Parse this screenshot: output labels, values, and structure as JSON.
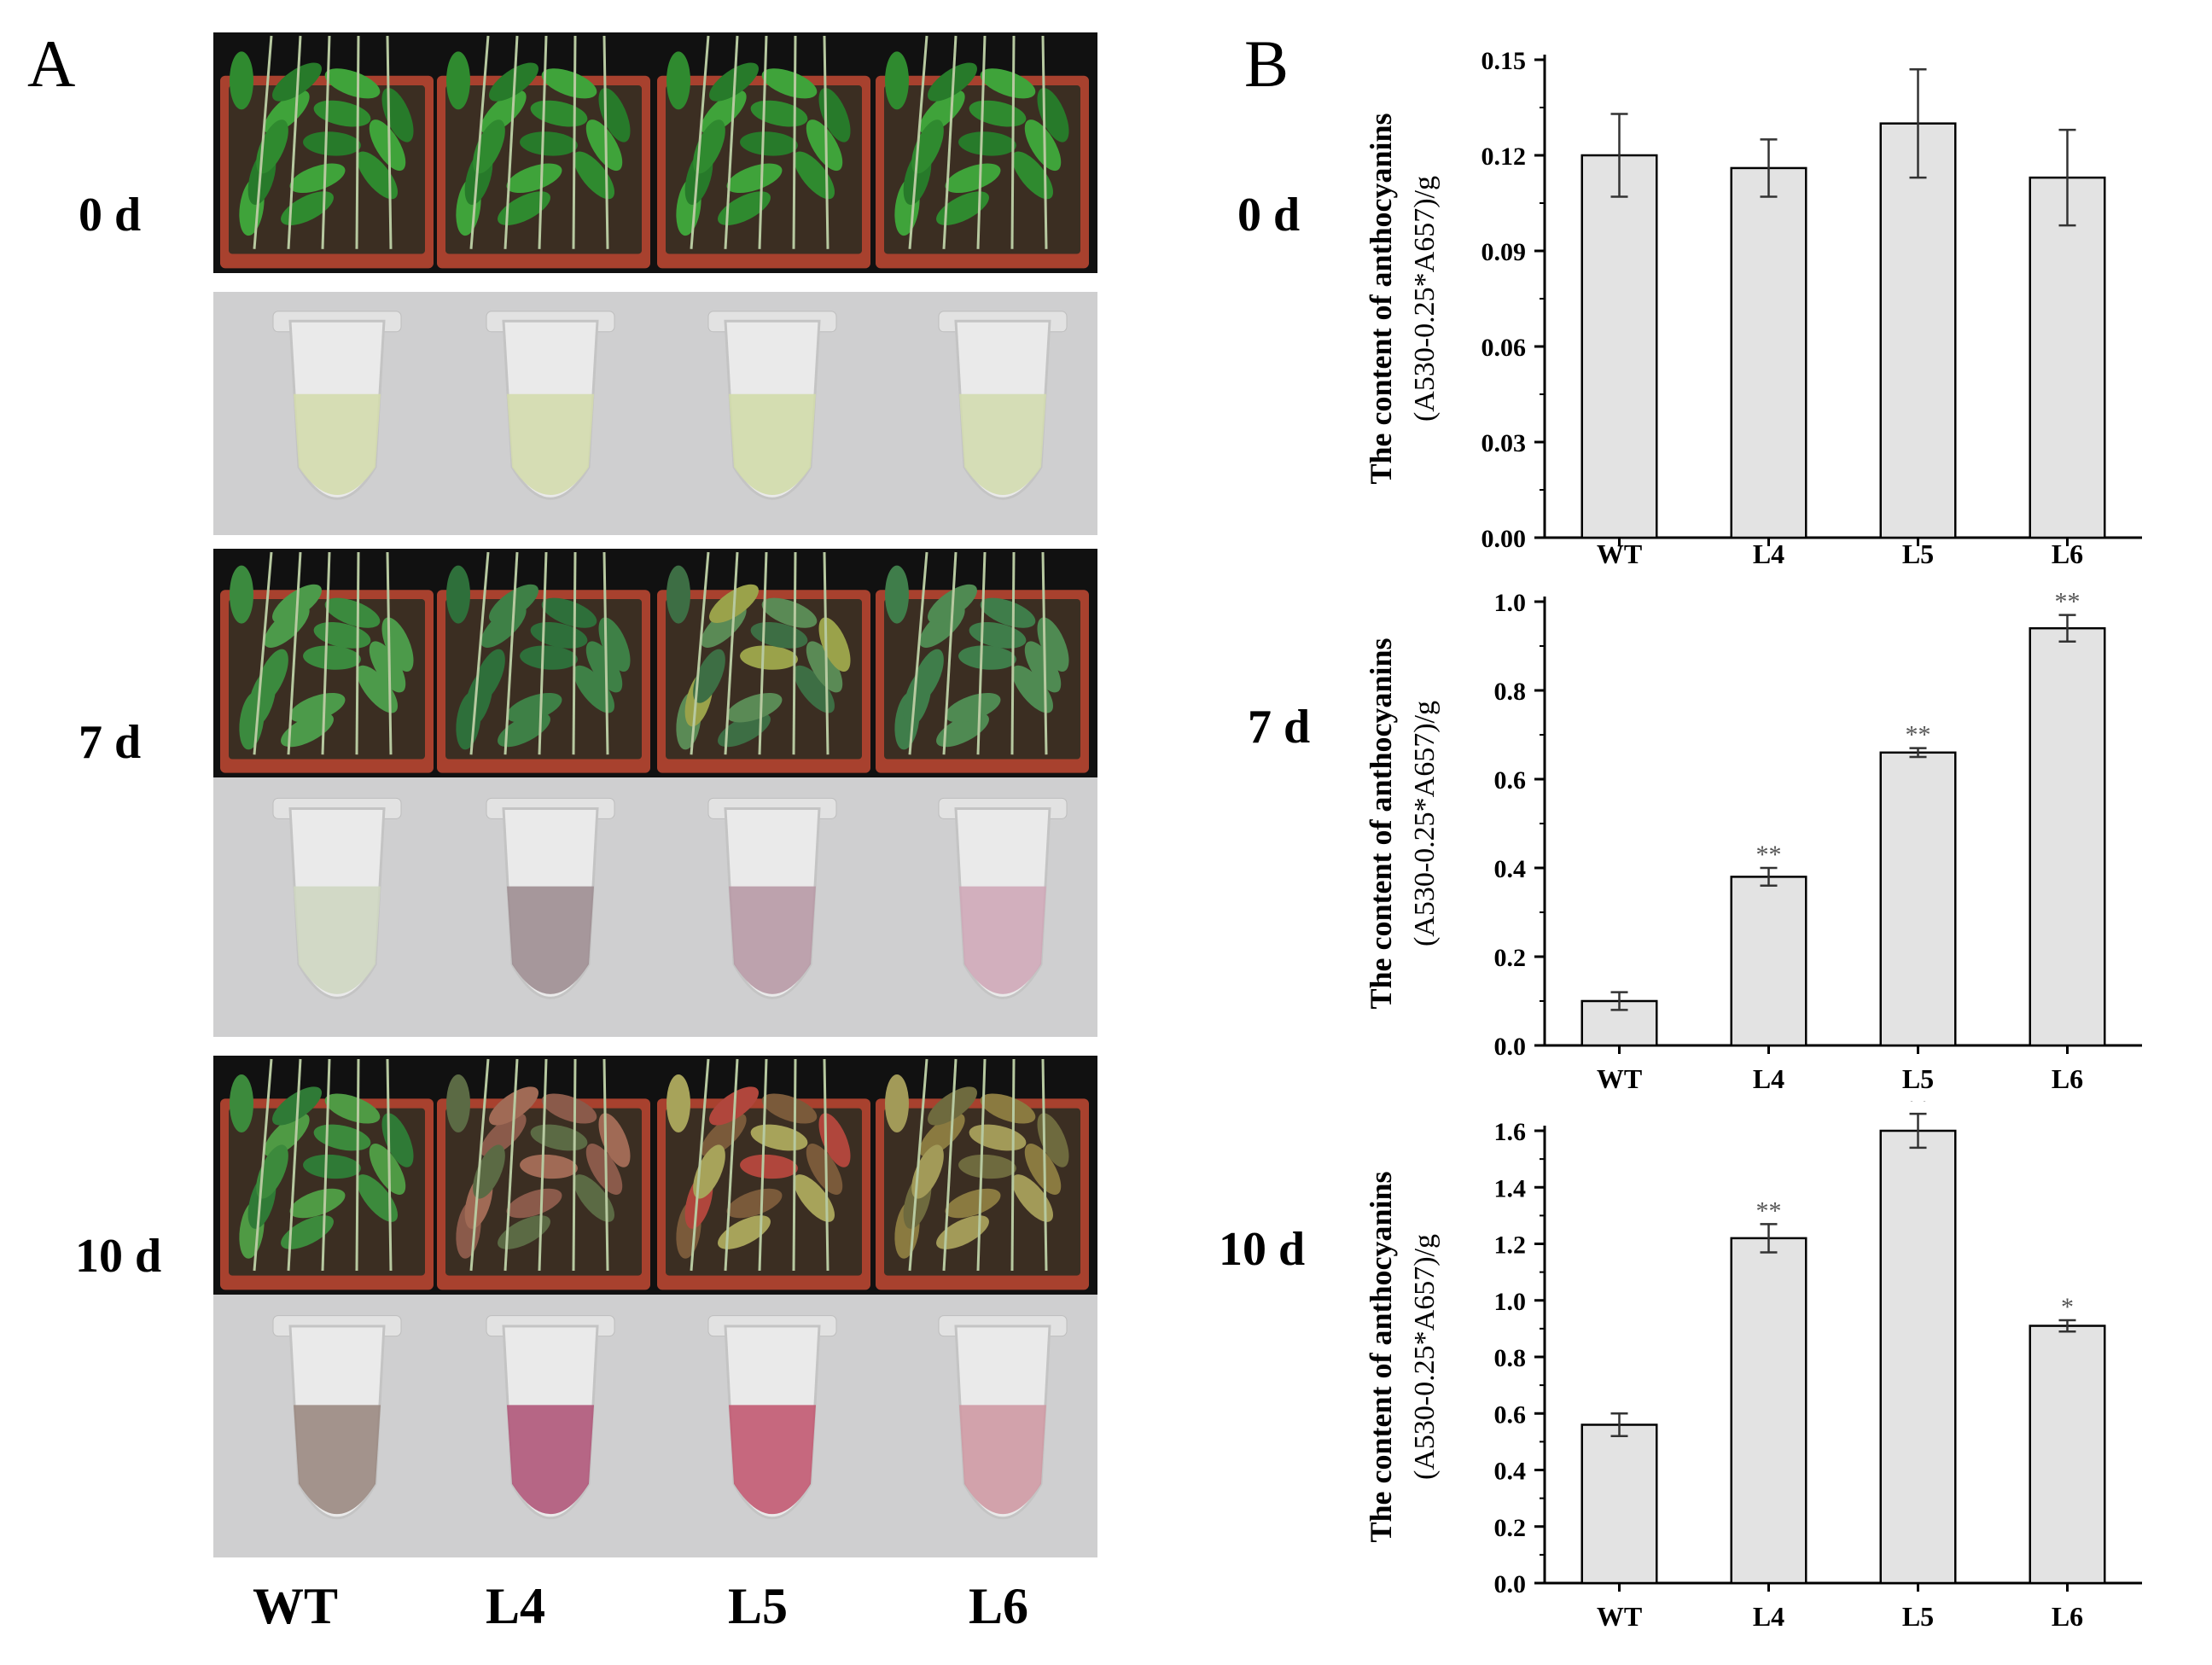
{
  "panel_a": {
    "letter": "A",
    "day_labels": [
      "0 d",
      "7 d",
      "10 d"
    ],
    "genotype_labels": [
      "WT",
      "L4",
      "L5",
      "L6"
    ]
  },
  "panel_b": {
    "letter": "B",
    "day_labels": [
      "0 d",
      "7 d",
      "10 d"
    ]
  },
  "colors": {
    "bar_fill": "#e3e3e3",
    "bar_stroke": "#000000",
    "tube_gray": "#cfcfd0",
    "black_bg": "#111111"
  },
  "chart_data": [
    {
      "type": "bar",
      "title": "",
      "ylabel": "The content of anthocyanins (A530-0.25*A657)/g",
      "xlabel": "",
      "categories": [
        "WT",
        "L4",
        "L5",
        "L6"
      ],
      "values": [
        0.12,
        0.116,
        0.13,
        0.113
      ],
      "errors": [
        0.013,
        0.009,
        0.017,
        0.015
      ],
      "significance": [
        "",
        "",
        "",
        ""
      ],
      "ylim": [
        0.0,
        0.15
      ],
      "yticks": [
        "0.00",
        "0.03",
        "0.06",
        "0.09",
        "0.12",
        "0.15"
      ]
    },
    {
      "type": "bar",
      "title": "",
      "ylabel": "The content of anthocyanins (A530-0.25*A657)/g",
      "xlabel": "",
      "categories": [
        "WT",
        "L4",
        "L5",
        "L6"
      ],
      "values": [
        0.1,
        0.38,
        0.66,
        0.94
      ],
      "errors": [
        0.02,
        0.02,
        0.01,
        0.03
      ],
      "significance": [
        "",
        "**",
        "**",
        "**"
      ],
      "ylim": [
        0.0,
        1.0
      ],
      "yticks": [
        "0.0",
        "0.2",
        "0.4",
        "0.6",
        "0.8",
        "1.0"
      ]
    },
    {
      "type": "bar",
      "title": "",
      "ylabel": "The content of anthocyanins (A530-0.25*A657)/g",
      "xlabel": "",
      "categories": [
        "WT",
        "L4",
        "L5",
        "L6"
      ],
      "values": [
        0.56,
        1.22,
        1.6,
        0.91
      ],
      "errors": [
        0.04,
        0.05,
        0.06,
        0.02
      ],
      "significance": [
        "",
        "**",
        "**",
        "*"
      ],
      "ylim": [
        0.0,
        1.6
      ],
      "yticks": [
        "0.0",
        "0.2",
        "0.4",
        "0.6",
        "0.8",
        "1.0",
        "1.2",
        "1.4",
        "1.6"
      ]
    }
  ]
}
